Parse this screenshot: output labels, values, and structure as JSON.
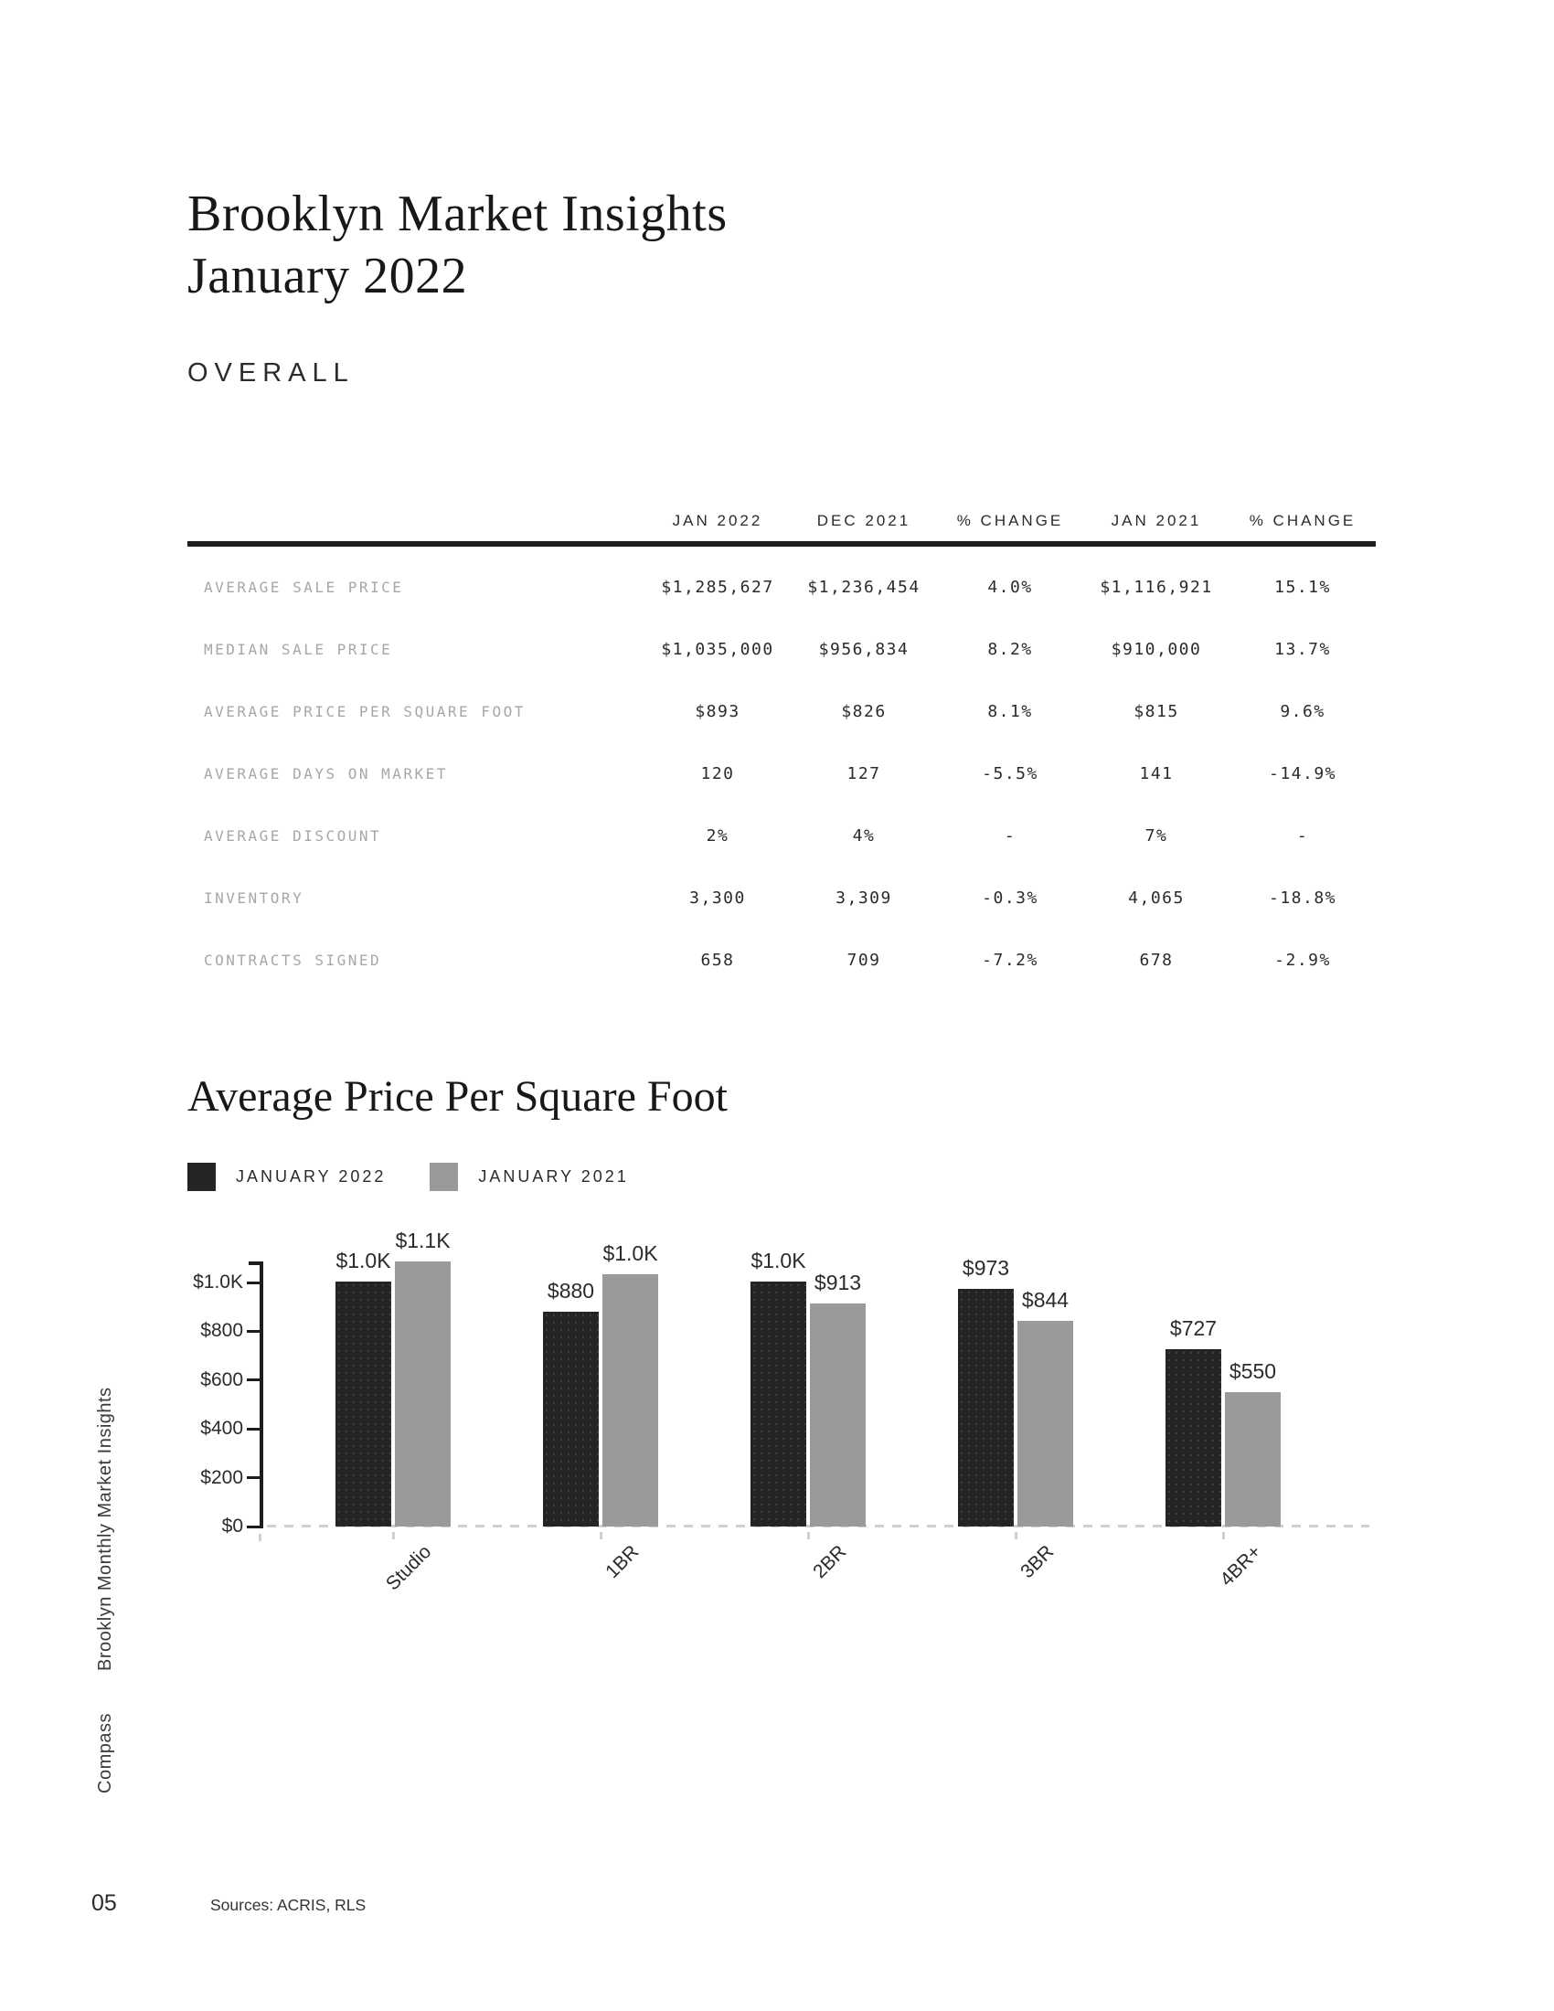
{
  "page": {
    "title_line1": "Brooklyn Market Insights",
    "title_line2": "January 2022",
    "section_label": "OVERALL",
    "sidebar_title": "Brooklyn Monthly Market Insights",
    "sidebar_brand": "Compass",
    "page_number": "05",
    "sources": "Sources: ACRIS, RLS"
  },
  "table": {
    "columns": [
      "JAN 2022",
      "DEC 2021",
      "% CHANGE",
      "JAN 2021",
      "% CHANGE"
    ],
    "rows": [
      {
        "label": "AVERAGE SALE PRICE",
        "values": [
          "$1,285,627",
          "$1,236,454",
          "4.0%",
          "$1,116,921",
          "15.1%"
        ]
      },
      {
        "label": "MEDIAN SALE PRICE",
        "values": [
          "$1,035,000",
          "$956,834",
          "8.2%",
          "$910,000",
          "13.7%"
        ]
      },
      {
        "label": "AVERAGE PRICE PER SQUARE FOOT",
        "values": [
          "$893",
          "$826",
          "8.1%",
          "$815",
          "9.6%"
        ]
      },
      {
        "label": "AVERAGE DAYS ON MARKET",
        "values": [
          "120",
          "127",
          "-5.5%",
          "141",
          "-14.9%"
        ]
      },
      {
        "label": "AVERAGE DISCOUNT",
        "values": [
          "2%",
          "4%",
          "-",
          "7%",
          "-"
        ]
      },
      {
        "label": "INVENTORY",
        "values": [
          "3,300",
          "3,309",
          "-0.3%",
          "4,065",
          "-18.8%"
        ]
      },
      {
        "label": "CONTRACTS SIGNED",
        "values": [
          "658",
          "709",
          "-7.2%",
          "678",
          "-2.9%"
        ]
      }
    ]
  },
  "chart_data": {
    "type": "bar",
    "title": "Average Price Per Square Foot",
    "categories": [
      "Studio",
      "1BR",
      "2BR",
      "3BR",
      "4BR+"
    ],
    "series": [
      {
        "name": "JANUARY 2022",
        "color": "#242424",
        "values": [
          1005,
          880,
          1005,
          973,
          727
        ],
        "labels": [
          "$1.0K",
          "$880",
          "$1.0K",
          "$973",
          "$727"
        ]
      },
      {
        "name": "JANUARY 2021",
        "color": "#9a9a9a",
        "values": [
          1086,
          1035,
          913,
          844,
          550
        ],
        "labels": [
          "$1.1K",
          "$1.0K",
          "$913",
          "$844",
          "$550"
        ]
      }
    ],
    "ylim": [
      0,
      1100
    ],
    "yticks": [
      0,
      200,
      400,
      600,
      800,
      1000
    ],
    "ytick_labels": [
      "$0",
      "$200",
      "$400",
      "$600",
      "$800",
      "$1.0K"
    ],
    "xlabel": "",
    "ylabel": "",
    "legend_position": "top-left",
    "grid": false,
    "baseline_style": "dashed"
  }
}
